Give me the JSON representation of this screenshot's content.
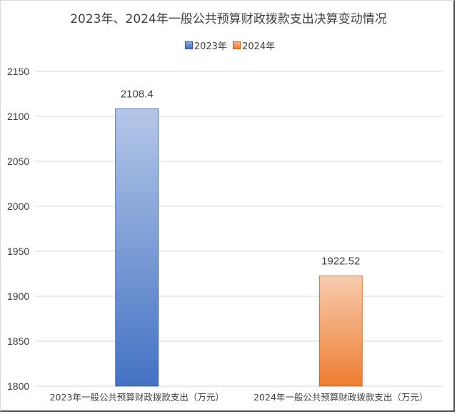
{
  "chart_data": {
    "type": "bar",
    "title": "2023年、2024年一般公共预算财政拨款支出决算变动情况",
    "categories": [
      "2023年一般公共预算财政拨款支出（万元）",
      "2024年一般公共预算财政拨款支出（万元）"
    ],
    "series": [
      {
        "name": "2023年",
        "values": [
          2108.4,
          null
        ],
        "color": "#4472c4"
      },
      {
        "name": "2024年",
        "values": [
          null,
          1922.52
        ],
        "color": "#ed7d31"
      }
    ],
    "data_labels": [
      "2108.4",
      "1922.52"
    ],
    "ylim": [
      1800,
      2150
    ],
    "yticks": [
      "1800",
      "1850",
      "1900",
      "1950",
      "2000",
      "2050",
      "2100",
      "2150"
    ],
    "xlabel": "",
    "ylabel": "",
    "grid": true,
    "legend_position": "top"
  }
}
